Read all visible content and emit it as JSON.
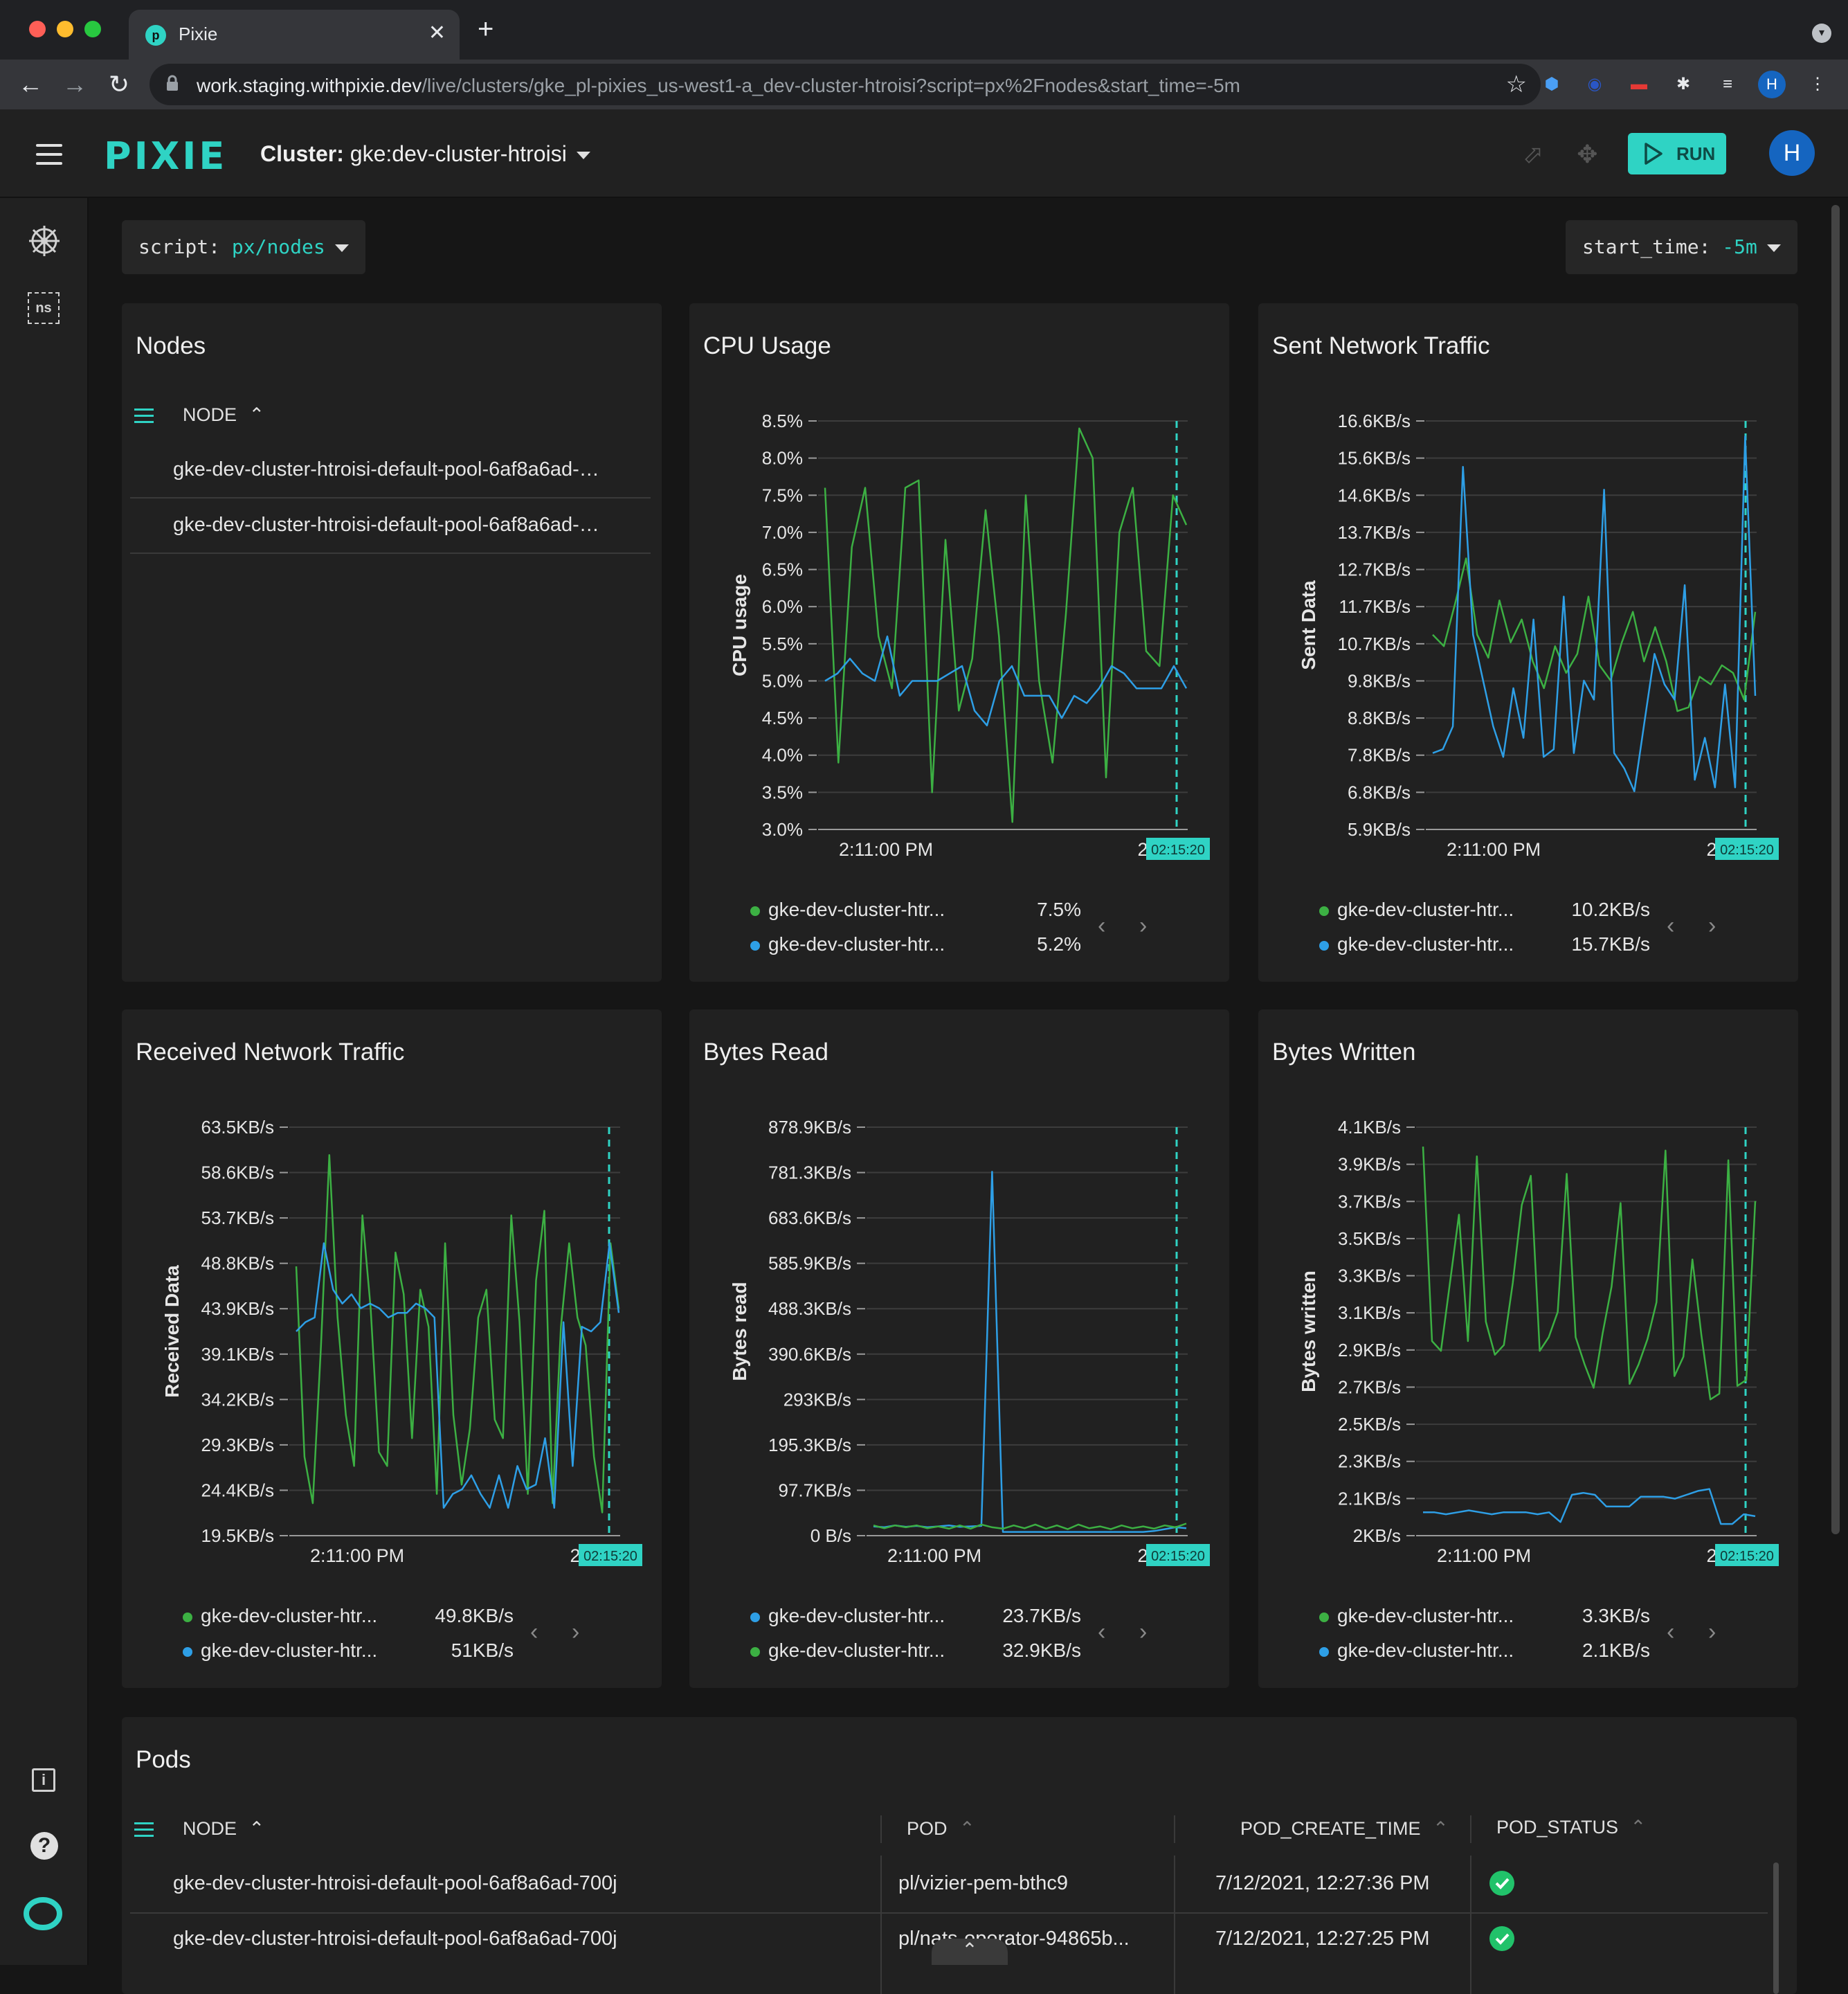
{
  "browser": {
    "tab_title": "Pixie",
    "url_host": "work.staging.withpixie.dev",
    "url_path": "/live/clusters/gke_pl-pixies_us-west1-a_dev-cluster-htroisi?script=px%2Fnodes&start_time=-5m",
    "profile_initial": "H"
  },
  "header": {
    "logo": "PIXIE",
    "cluster_label": "Cluster:",
    "cluster_value": "gke:dev-cluster-htroisi",
    "run_label": "RUN",
    "avatar_initial": "H"
  },
  "sidebar": {
    "ns_label": "ns"
  },
  "selectors": {
    "script_label": "script:",
    "script_value": "px/nodes",
    "time_label": "start_time:",
    "time_value": "-5m"
  },
  "nodes_card": {
    "title": "Nodes",
    "column": "NODE",
    "rows": [
      "gke-dev-cluster-htroisi-default-pool-6af8a6ad-…",
      "gke-dev-cluster-htroisi-default-pool-6af8a6ad-…"
    ]
  },
  "colors": {
    "green": "#3cb043",
    "blue": "#2e9fe6",
    "accent": "#2fd3c4"
  },
  "charts": [
    {
      "id": "cpu",
      "title": "CPU Usage",
      "ylabel": "CPU usage",
      "yticks": [
        "8.5%",
        "8.0%",
        "7.5%",
        "7.0%",
        "6.5%",
        "6.0%",
        "5.5%",
        "5.0%",
        "4.5%",
        "4.0%",
        "3.5%",
        "3.0%"
      ],
      "xtick_left": "2:11:00 PM",
      "xtick_right": "2:15",
      "cursor_label": "02:15:20",
      "ylim": [
        3.0,
        8.5
      ],
      "series": [
        {
          "color": "green",
          "values": [
            7.6,
            3.9,
            6.8,
            7.6,
            5.6,
            4.9,
            7.6,
            7.7,
            3.5,
            6.9,
            4.6,
            5.3,
            7.3,
            5.6,
            3.1,
            7.5,
            5.0,
            3.9,
            5.9,
            8.4,
            8.0,
            3.7,
            7.0,
            7.6,
            5.4,
            5.2,
            7.5,
            7.1
          ]
        },
        {
          "color": "blue",
          "values": [
            5.0,
            5.1,
            5.3,
            5.1,
            5.0,
            5.6,
            4.8,
            5.0,
            5.0,
            5.0,
            5.1,
            5.2,
            4.6,
            4.4,
            5.0,
            5.2,
            4.8,
            4.8,
            4.8,
            4.5,
            4.8,
            4.7,
            4.9,
            5.2,
            5.1,
            4.9,
            4.9,
            4.9,
            5.2,
            4.9
          ]
        }
      ],
      "legend": [
        {
          "color": "green",
          "name": "gke-dev-cluster-htr...",
          "value": "7.5%"
        },
        {
          "color": "blue",
          "name": "gke-dev-cluster-htr...",
          "value": "5.2%"
        }
      ]
    },
    {
      "id": "sent",
      "title": "Sent Network Traffic",
      "ylabel": "Sent Data",
      "yticks": [
        "16.6KB/s",
        "15.6KB/s",
        "14.6KB/s",
        "13.7KB/s",
        "12.7KB/s",
        "11.7KB/s",
        "10.7KB/s",
        "9.8KB/s",
        "8.8KB/s",
        "7.8KB/s",
        "6.8KB/s",
        "5.9KB/s"
      ],
      "xtick_left": "2:11:00 PM",
      "xtick_right": "2:15",
      "cursor_label": "02:15:20",
      "ylim": [
        5.9,
        16.6
      ],
      "series": [
        {
          "color": "green",
          "values": [
            11.0,
            10.7,
            11.8,
            13.0,
            11.0,
            10.4,
            11.9,
            10.8,
            11.4,
            10.3,
            9.6,
            10.7,
            10.0,
            10.5,
            12.0,
            10.2,
            9.8,
            10.8,
            11.6,
            10.3,
            11.2,
            10.3,
            9.0,
            9.1,
            9.9,
            9.7,
            10.2,
            10.0,
            9.3,
            11.6
          ]
        },
        {
          "color": "blue",
          "values": [
            7.9,
            8.0,
            8.6,
            15.4,
            11.0,
            9.8,
            8.6,
            7.8,
            9.6,
            8.3,
            11.4,
            7.8,
            8.0,
            12.0,
            7.9,
            9.8,
            9.3,
            14.8,
            7.9,
            7.5,
            6.9,
            8.7,
            10.5,
            9.7,
            9.3,
            12.3,
            7.2,
            8.3,
            7.0,
            9.7,
            7.0,
            16.2,
            9.4
          ]
        }
      ],
      "legend": [
        {
          "color": "green",
          "name": "gke-dev-cluster-htr...",
          "value": "10.2KB/s"
        },
        {
          "color": "blue",
          "name": "gke-dev-cluster-htr...",
          "value": "15.7KB/s"
        }
      ]
    },
    {
      "id": "recv",
      "title": "Received Network Traffic",
      "ylabel": "Received Data",
      "yticks": [
        "63.5KB/s",
        "58.6KB/s",
        "53.7KB/s",
        "48.8KB/s",
        "43.9KB/s",
        "39.1KB/s",
        "34.2KB/s",
        "29.3KB/s",
        "24.4KB/s",
        "19.5KB/s"
      ],
      "xtick_left": "2:11:00 PM",
      "xtick_right": "2:15",
      "cursor_label": "02:15:20",
      "ylim": [
        19.5,
        63.5
      ],
      "series": [
        {
          "color": "green",
          "values": [
            48.5,
            28.0,
            23.0,
            40.0,
            60.5,
            43.0,
            32.5,
            27.0,
            54.0,
            44.0,
            28.5,
            27.0,
            50.0,
            45.5,
            30.0,
            46.0,
            42.0,
            24.0,
            51.0,
            32.5,
            25.0,
            31.0,
            43.0,
            46.0,
            32.0,
            30.0,
            54.0,
            42.5,
            24.0,
            47.0,
            54.5,
            23.0,
            42.0,
            51.0,
            43.0,
            40.0,
            28.0,
            22.0,
            51.0,
            44.0
          ]
        },
        {
          "color": "blue",
          "values": [
            41.5,
            42.5,
            43.0,
            51.0,
            46.0,
            44.5,
            45.5,
            44.0,
            44.5,
            44.0,
            43.0,
            43.5,
            43.5,
            44.5,
            44.0,
            43.0,
            22.5,
            24.0,
            24.5,
            26.0,
            24.0,
            22.5,
            26.0,
            22.5,
            27.0,
            24.5,
            25.0,
            30.0,
            22.5,
            42.5,
            27.0,
            42.0,
            41.5,
            42.5,
            51.0,
            43.5
          ]
        }
      ],
      "legend": [
        {
          "color": "green",
          "name": "gke-dev-cluster-htr...",
          "value": "49.8KB/s"
        },
        {
          "color": "blue",
          "name": "gke-dev-cluster-htr...",
          "value": "51KB/s"
        }
      ]
    },
    {
      "id": "read",
      "title": "Bytes Read",
      "ylabel": "Bytes read",
      "yticks": [
        "878.9KB/s",
        "781.3KB/s",
        "683.6KB/s",
        "585.9KB/s",
        "488.3KB/s",
        "390.6KB/s",
        "293KB/s",
        "195.3KB/s",
        "97.7KB/s",
        "0 B/s"
      ],
      "xtick_left": "2:11:00 PM",
      "xtick_right": "2:15",
      "cursor_label": "02:15:20",
      "ylim": [
        0,
        878.9
      ],
      "series": [
        {
          "color": "blue",
          "values": [
            20,
            18,
            22,
            19,
            21,
            18,
            20,
            22,
            19,
            20,
            21,
            783,
            8,
            8,
            8,
            8,
            8,
            8,
            8,
            8,
            8,
            8,
            8,
            8,
            8,
            8,
            10,
            14,
            18,
            16
          ]
        },
        {
          "color": "green",
          "values": [
            22,
            16,
            22,
            18,
            22,
            16,
            20,
            15,
            22,
            15,
            24,
            18,
            15,
            22,
            16,
            24,
            15,
            22,
            14,
            24,
            16,
            20,
            14,
            22,
            16,
            20,
            15,
            22,
            18,
            26
          ]
        }
      ],
      "legend": [
        {
          "color": "blue",
          "name": "gke-dev-cluster-htr...",
          "value": "23.7KB/s"
        },
        {
          "color": "green",
          "name": "gke-dev-cluster-htr...",
          "value": "32.9KB/s"
        }
      ]
    },
    {
      "id": "written",
      "title": "Bytes Written",
      "ylabel": "Bytes written",
      "yticks": [
        "4.1KB/s",
        "3.9KB/s",
        "3.7KB/s",
        "3.5KB/s",
        "3.3KB/s",
        "3.1KB/s",
        "2.9KB/s",
        "2.7KB/s",
        "2.5KB/s",
        "2.3KB/s",
        "2.1KB/s",
        "2KB/s"
      ],
      "xtick_left": "2:11:00 PM",
      "xtick_right": "2:15",
      "cursor_label": "02:15:20",
      "ylim": [
        2.0,
        4.1
      ],
      "series": [
        {
          "color": "green",
          "values": [
            4.0,
            3.0,
            2.95,
            3.3,
            3.65,
            3.0,
            3.95,
            3.1,
            2.93,
            2.98,
            3.3,
            3.7,
            3.85,
            2.95,
            3.02,
            3.15,
            3.86,
            3.02,
            2.88,
            2.76,
            3.04,
            3.28,
            3.71,
            2.78,
            2.88,
            3.01,
            3.2,
            3.98,
            2.82,
            2.92,
            3.42,
            3.03,
            2.7,
            2.73,
            3.93,
            2.77,
            2.8,
            3.72
          ]
        },
        {
          "color": "blue",
          "values": [
            2.12,
            2.12,
            2.11,
            2.12,
            2.13,
            2.12,
            2.11,
            2.12,
            2.12,
            2.12,
            2.11,
            2.12,
            2.07,
            2.21,
            2.22,
            2.21,
            2.15,
            2.15,
            2.15,
            2.2,
            2.2,
            2.2,
            2.19,
            2.21,
            2.23,
            2.24,
            2.06,
            2.06,
            2.11,
            2.1
          ]
        }
      ],
      "legend": [
        {
          "color": "green",
          "name": "gke-dev-cluster-htr...",
          "value": "3.3KB/s"
        },
        {
          "color": "blue",
          "name": "gke-dev-cluster-htr...",
          "value": "2.1KB/s"
        }
      ]
    }
  ],
  "pods": {
    "title": "Pods",
    "columns": [
      "NODE",
      "POD",
      "POD_CREATE_TIME",
      "POD_STATUS"
    ],
    "rows": [
      {
        "node": "gke-dev-cluster-htroisi-default-pool-6af8a6ad-700j",
        "pod": "pl/vizier-pem-bthc9",
        "create_time": "7/12/2021, 12:27:36 PM"
      },
      {
        "node": "gke-dev-cluster-htroisi-default-pool-6af8a6ad-700j",
        "pod": "pl/nats-operator-94865b...",
        "create_time": "7/12/2021, 12:27:25 PM"
      }
    ]
  }
}
